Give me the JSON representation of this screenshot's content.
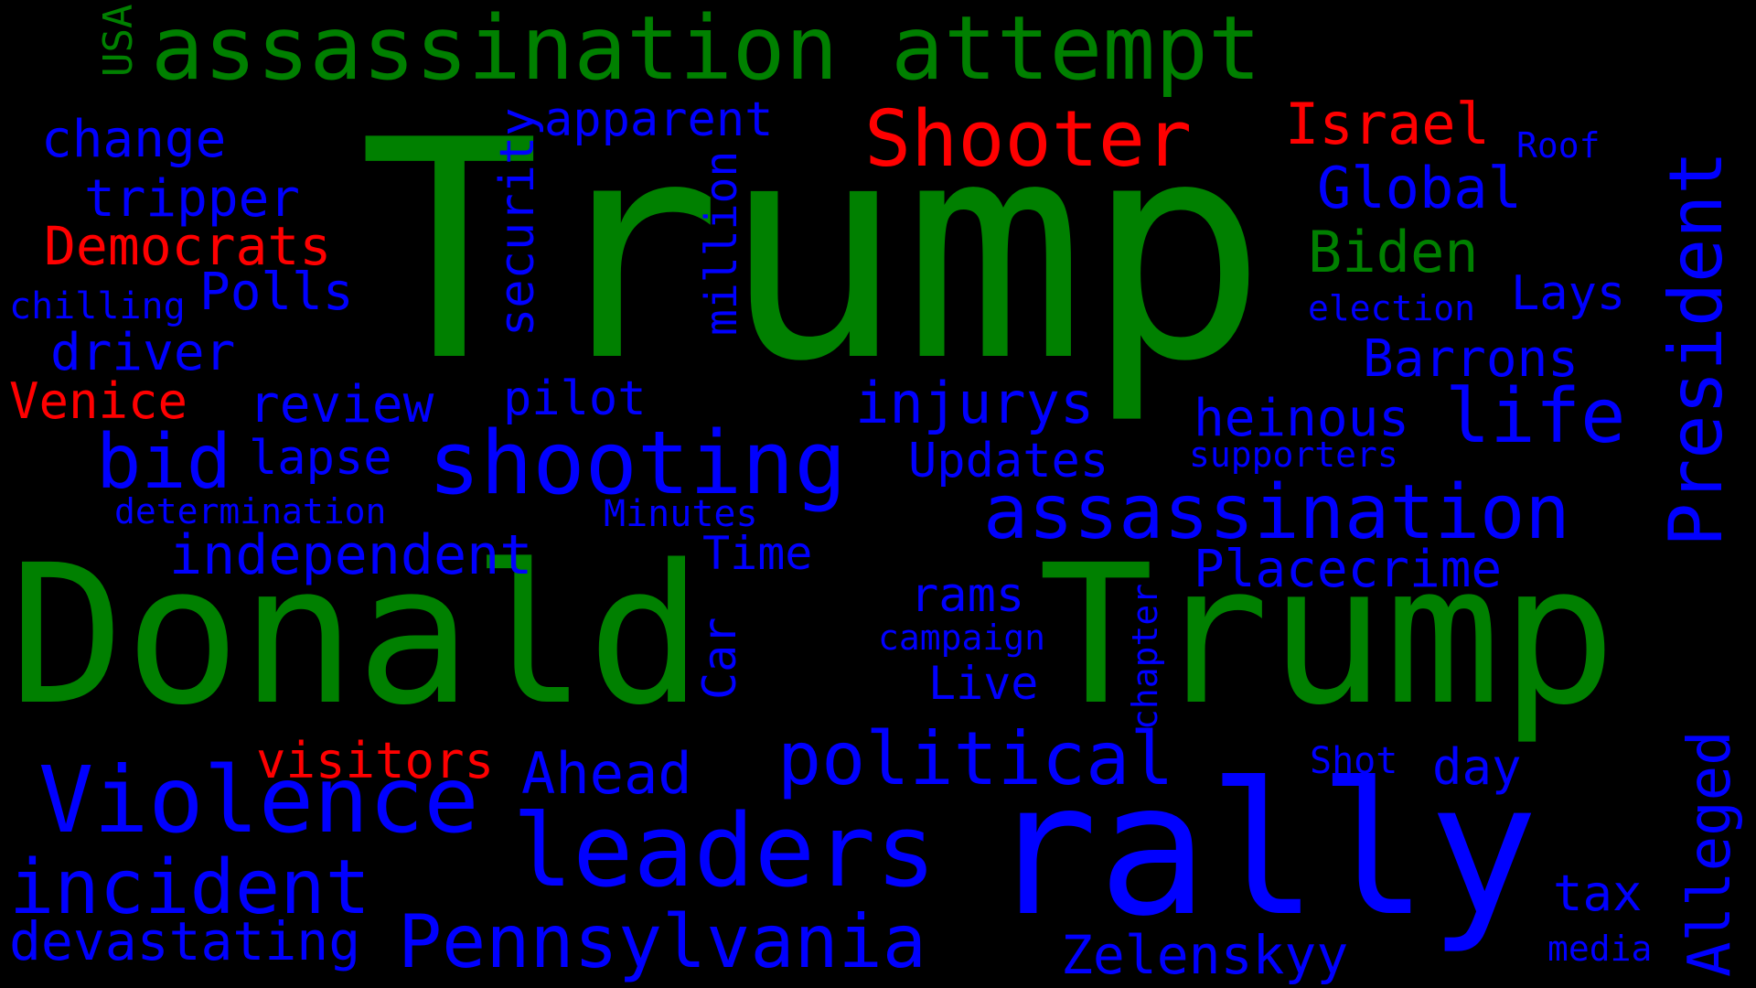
{
  "palette": {
    "background": "#000000",
    "green": "#008000",
    "blue": "#0000FF",
    "red": "#FF0000"
  },
  "words": [
    {
      "text": "Trump",
      "color": "green",
      "orientation": "horizontal"
    },
    {
      "text": "Donald",
      "color": "green",
      "orientation": "horizontal"
    },
    {
      "text": "Trump",
      "color": "green",
      "orientation": "horizontal"
    },
    {
      "text": "assassination attempt",
      "color": "green",
      "orientation": "horizontal"
    },
    {
      "text": "rally",
      "color": "blue",
      "orientation": "horizontal"
    },
    {
      "text": "leaders",
      "color": "blue",
      "orientation": "horizontal"
    },
    {
      "text": "shooting",
      "color": "blue",
      "orientation": "horizontal"
    },
    {
      "text": "Violence",
      "color": "blue",
      "orientation": "horizontal"
    },
    {
      "text": "political",
      "color": "blue",
      "orientation": "horizontal"
    },
    {
      "text": "assassination",
      "color": "blue",
      "orientation": "horizontal"
    },
    {
      "text": "Pennsylvania",
      "color": "blue",
      "orientation": "horizontal"
    },
    {
      "text": "incident",
      "color": "blue",
      "orientation": "horizontal"
    },
    {
      "text": "Shooter",
      "color": "red",
      "orientation": "horizontal"
    },
    {
      "text": "President",
      "color": "blue",
      "orientation": "vertical"
    },
    {
      "text": "life",
      "color": "blue",
      "orientation": "horizontal"
    },
    {
      "text": "bid",
      "color": "blue",
      "orientation": "horizontal"
    },
    {
      "text": "Biden",
      "color": "green",
      "orientation": "horizontal"
    },
    {
      "text": "Israel",
      "color": "red",
      "orientation": "horizontal"
    },
    {
      "text": "Global",
      "color": "blue",
      "orientation": "horizontal"
    },
    {
      "text": "Alleged",
      "color": "blue",
      "orientation": "vertical"
    },
    {
      "text": "independent",
      "color": "blue",
      "orientation": "horizontal"
    },
    {
      "text": "Democrats",
      "color": "red",
      "orientation": "horizontal"
    },
    {
      "text": "security",
      "color": "blue",
      "orientation": "vertical"
    },
    {
      "text": "Zelenskyy",
      "color": "blue",
      "orientation": "horizontal"
    },
    {
      "text": "devastating",
      "color": "blue",
      "orientation": "horizontal"
    },
    {
      "text": "Placecrime",
      "color": "blue",
      "orientation": "horizontal"
    },
    {
      "text": "Barrons",
      "color": "blue",
      "orientation": "horizontal"
    },
    {
      "text": "injurys",
      "color": "blue",
      "orientation": "horizontal"
    },
    {
      "text": "apparent",
      "color": "blue",
      "orientation": "horizontal"
    },
    {
      "text": "heinous",
      "color": "blue",
      "orientation": "horizontal"
    },
    {
      "text": "Ahead",
      "color": "blue",
      "orientation": "horizontal"
    },
    {
      "text": "Polls",
      "color": "blue",
      "orientation": "horizontal"
    },
    {
      "text": "change",
      "color": "blue",
      "orientation": "horizontal"
    },
    {
      "text": "tripper",
      "color": "blue",
      "orientation": "horizontal"
    },
    {
      "text": "driver",
      "color": "blue",
      "orientation": "horizontal"
    },
    {
      "text": "review",
      "color": "blue",
      "orientation": "horizontal"
    },
    {
      "text": "visitors",
      "color": "red",
      "orientation": "horizontal"
    },
    {
      "text": "Venice",
      "color": "red",
      "orientation": "horizontal"
    },
    {
      "text": "Updates",
      "color": "blue",
      "orientation": "horizontal"
    },
    {
      "text": "Time",
      "color": "blue",
      "orientation": "horizontal"
    },
    {
      "text": "pilot",
      "color": "blue",
      "orientation": "horizontal"
    },
    {
      "text": "lapse",
      "color": "blue",
      "orientation": "horizontal"
    },
    {
      "text": "Lays",
      "color": "blue",
      "orientation": "horizontal"
    },
    {
      "text": "rams",
      "color": "blue",
      "orientation": "horizontal"
    },
    {
      "text": "million",
      "color": "blue",
      "orientation": "vertical"
    },
    {
      "text": "day",
      "color": "blue",
      "orientation": "horizontal"
    },
    {
      "text": "tax",
      "color": "blue",
      "orientation": "horizontal"
    },
    {
      "text": "Live",
      "color": "blue",
      "orientation": "horizontal"
    },
    {
      "text": "Car",
      "color": "blue",
      "orientation": "vertical"
    },
    {
      "text": "USA",
      "color": "green",
      "orientation": "vertical"
    },
    {
      "text": "chilling",
      "color": "blue",
      "orientation": "horizontal"
    },
    {
      "text": "election",
      "color": "blue",
      "orientation": "horizontal"
    },
    {
      "text": "determination",
      "color": "blue",
      "orientation": "horizontal"
    },
    {
      "text": "supporters",
      "color": "blue",
      "orientation": "horizontal"
    },
    {
      "text": "Minutes",
      "color": "blue",
      "orientation": "horizontal"
    },
    {
      "text": "campaign",
      "color": "blue",
      "orientation": "horizontal"
    },
    {
      "text": "chapter",
      "color": "blue",
      "orientation": "vertical"
    },
    {
      "text": "Shot",
      "color": "blue",
      "orientation": "horizontal"
    },
    {
      "text": "Roof",
      "color": "blue",
      "orientation": "horizontal"
    },
    {
      "text": "media",
      "color": "blue",
      "orientation": "horizontal"
    }
  ]
}
